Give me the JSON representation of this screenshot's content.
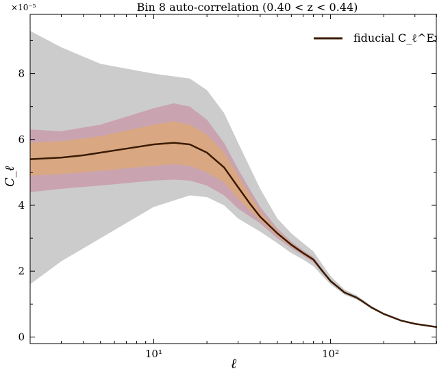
{
  "chart_data": {
    "type": "line",
    "title": "Bin 8 auto-correlation (0.40 < z < 0.44)",
    "xlabel": "ℓ",
    "ylabel": "C_ℓ",
    "y_scale_label": "×10⁻⁵",
    "x_scale": "log",
    "xlim": [
      2,
      400
    ],
    "ylim": [
      -0.2,
      9.8
    ],
    "x_ticks": [
      {
        "value": 10,
        "label": "10¹"
      },
      {
        "value": 100,
        "label": "10²"
      }
    ],
    "y_ticks": [
      {
        "value": 0,
        "label": "0"
      },
      {
        "value": 2,
        "label": "2"
      },
      {
        "value": 4,
        "label": "4"
      },
      {
        "value": 6,
        "label": "6"
      },
      {
        "value": 8,
        "label": "8"
      }
    ],
    "legend": {
      "position": "top-right",
      "entries": [
        "fiducial C_ℓ^Ex"
      ]
    },
    "series": [
      {
        "name": "fiducial C_ℓ^Ex",
        "color": "#3a1a00",
        "x": [
          2,
          3,
          4,
          5,
          7,
          10,
          13,
          16,
          20,
          25,
          30,
          35,
          40,
          50,
          60,
          70,
          80,
          90,
          100,
          120,
          140,
          150,
          170,
          200,
          250,
          300,
          400
        ],
        "y": [
          5.4,
          5.45,
          5.52,
          5.6,
          5.72,
          5.85,
          5.9,
          5.85,
          5.6,
          5.15,
          4.55,
          4.05,
          3.65,
          3.15,
          2.8,
          2.55,
          2.35,
          2.0,
          1.7,
          1.35,
          1.2,
          1.1,
          0.9,
          0.7,
          0.5,
          0.4,
          0.3
        ]
      }
    ],
    "bands": [
      {
        "color": "#cccccc",
        "x": [
          2,
          3,
          5,
          10,
          16,
          20,
          25,
          30,
          40,
          50,
          60,
          70,
          80,
          90,
          100,
          120,
          140,
          150,
          170,
          200,
          250,
          300,
          400
        ],
        "lower": [
          1.6,
          2.3,
          3.0,
          3.95,
          4.3,
          4.25,
          4.0,
          3.6,
          3.2,
          2.85,
          2.55,
          2.35,
          2.15,
          1.85,
          1.6,
          1.28,
          1.14,
          1.05,
          0.86,
          0.67,
          0.48,
          0.38,
          0.28
        ],
        "upper": [
          9.3,
          8.8,
          8.3,
          8.0,
          7.85,
          7.5,
          6.8,
          5.9,
          4.5,
          3.6,
          3.15,
          2.85,
          2.6,
          2.2,
          1.85,
          1.44,
          1.27,
          1.16,
          0.94,
          0.73,
          0.52,
          0.42,
          0.32
        ]
      },
      {
        "color": "#c9a4b0",
        "x": [
          2,
          3,
          5,
          10,
          13,
          16,
          20,
          25,
          30,
          40,
          50,
          60,
          70,
          80,
          90,
          100,
          120,
          140,
          150,
          170,
          200,
          250,
          300,
          400
        ],
        "lower": [
          4.4,
          4.5,
          4.6,
          4.75,
          4.78,
          4.75,
          4.6,
          4.3,
          3.9,
          3.45,
          3.0,
          2.7,
          2.47,
          2.27,
          1.95,
          1.66,
          1.33,
          1.18,
          1.08,
          0.89,
          0.69,
          0.49,
          0.39,
          0.29
        ],
        "upper": [
          6.3,
          6.25,
          6.45,
          6.95,
          7.1,
          7.0,
          6.6,
          5.9,
          5.1,
          3.95,
          3.3,
          2.9,
          2.63,
          2.43,
          2.05,
          1.74,
          1.37,
          1.22,
          1.12,
          0.91,
          0.71,
          0.51,
          0.41,
          0.31
        ]
      },
      {
        "color": "#d9a882",
        "x": [
          2,
          3,
          5,
          10,
          13,
          16,
          20,
          25,
          30,
          40,
          50,
          60,
          70,
          80,
          90,
          100,
          120,
          140,
          150,
          170,
          200,
          250,
          300,
          400
        ],
        "lower": [
          4.9,
          4.95,
          5.05,
          5.2,
          5.25,
          5.2,
          5.0,
          4.7,
          4.2,
          3.55,
          3.08,
          2.75,
          2.51,
          2.31,
          1.97,
          1.68,
          1.34,
          1.19,
          1.09,
          0.89,
          0.69,
          0.49,
          0.39,
          0.29
        ],
        "upper": [
          5.9,
          5.95,
          6.1,
          6.45,
          6.55,
          6.45,
          6.15,
          5.6,
          4.9,
          3.8,
          3.22,
          2.85,
          2.59,
          2.39,
          2.03,
          1.72,
          1.36,
          1.21,
          1.11,
          0.91,
          0.71,
          0.51,
          0.41,
          0.31
        ]
      }
    ]
  }
}
